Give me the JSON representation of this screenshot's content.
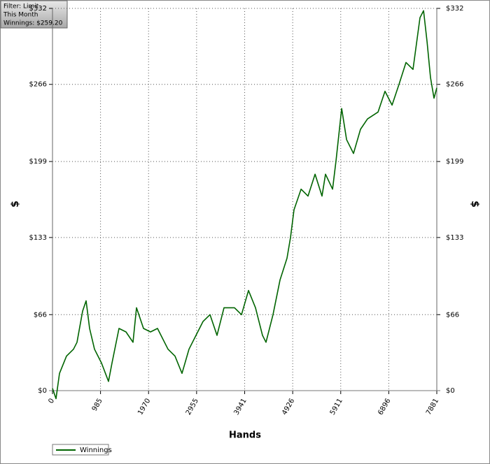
{
  "chart_data": {
    "type": "line",
    "annotations": [
      "Filter: Limit",
      "This Month",
      "Winnings: $259.20"
    ],
    "x_label": "Hands",
    "y_label": "$",
    "y2_label": "$",
    "x": [
      0,
      72,
      144,
      287,
      431,
      502,
      617,
      689,
      761,
      861,
      1005,
      1148,
      1220,
      1364,
      1507,
      1651,
      1723,
      1866,
      2010,
      2153,
      2369,
      2512,
      2656,
      2799,
      2943,
      3086,
      3230,
      3373,
      3517,
      3732,
      3876,
      4019,
      4163,
      4307,
      4378,
      4522,
      4666,
      4809,
      4881,
      4953,
      5097,
      5240,
      5384,
      5527,
      5599,
      5743,
      5815,
      5930,
      6030,
      6173,
      6317,
      6460,
      6676,
      6819,
      6963,
      7106,
      7250,
      7393,
      7537,
      7609,
      7681,
      7752,
      7824,
      7881
    ],
    "series": [
      {
        "name": "Winnings",
        "color": "#006400",
        "values": [
          2,
          -7,
          15,
          30,
          36,
          42,
          69,
          78,
          54,
          36,
          24,
          8,
          24,
          54,
          51,
          42,
          72,
          54,
          51,
          54,
          36,
          30,
          15,
          36,
          48,
          60,
          66,
          48,
          72,
          72,
          66,
          87,
          72,
          48,
          42,
          66,
          96,
          115,
          133,
          157,
          175,
          169,
          188,
          169,
          188,
          175,
          200,
          245,
          218,
          206,
          227,
          236,
          242,
          260,
          248,
          266,
          285,
          279,
          324,
          330,
          303,
          272,
          254,
          263
        ]
      }
    ],
    "xlim": [
      0,
      7881
    ],
    "xticks": [
      0,
      985,
      1970,
      2955,
      3941,
      4926,
      5911,
      6896,
      7881
    ],
    "ylim": [
      0,
      332
    ],
    "yticks": [
      {
        "value": 0,
        "label": "$0"
      },
      {
        "value": 66,
        "label": "$66"
      },
      {
        "value": 133,
        "label": "$133"
      },
      {
        "value": 199,
        "label": "$199"
      },
      {
        "value": 266,
        "label": "$266"
      },
      {
        "value": 332,
        "label": "$332"
      }
    ],
    "y2lim": [
      0,
      332
    ],
    "y2ticks": [
      {
        "value": 0,
        "label": "$0"
      },
      {
        "value": 66,
        "label": "$66"
      },
      {
        "value": 133,
        "label": "$133"
      },
      {
        "value": 199,
        "label": "$199"
      },
      {
        "value": 266,
        "label": "$266"
      },
      {
        "value": 332,
        "label": "$332"
      }
    ],
    "grid": true
  }
}
